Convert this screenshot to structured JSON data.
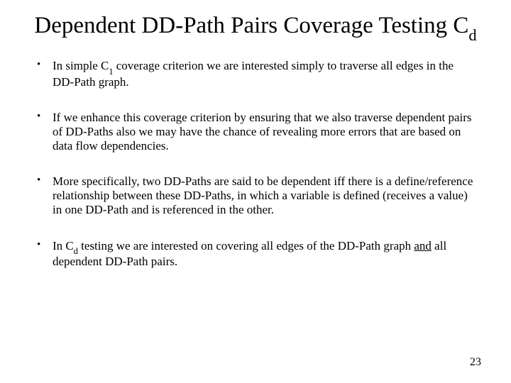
{
  "title_pre": "Dependent DD-Path Pairs Coverage Testing C",
  "title_sub": "d",
  "bullets": {
    "b1_a": "In simple C",
    "b1_sub": "1",
    "b1_b": " coverage criterion we are interested simply to traverse all edges in the DD-Path graph.",
    "b2": "If we enhance this coverage criterion by ensuring that we also traverse dependent pairs of DD-Paths also we may have the chance of revealing more errors that are based on data flow dependencies.",
    "b3": "More specifically, two DD-Paths are said to be dependent iff there is a define/reference relationship between these DD-Paths, in which a variable is defined (receives a value) in one DD-Path and is referenced in the other.",
    "b4_a": "In C",
    "b4_sub": "d",
    "b4_b": " testing we are interested on covering all edges of the DD-Path graph ",
    "b4_u": "and",
    "b4_c": " all dependent DD-Path pairs."
  },
  "page_number": "23",
  "colors": {
    "bg": "#ffffff",
    "text": "#000000"
  }
}
